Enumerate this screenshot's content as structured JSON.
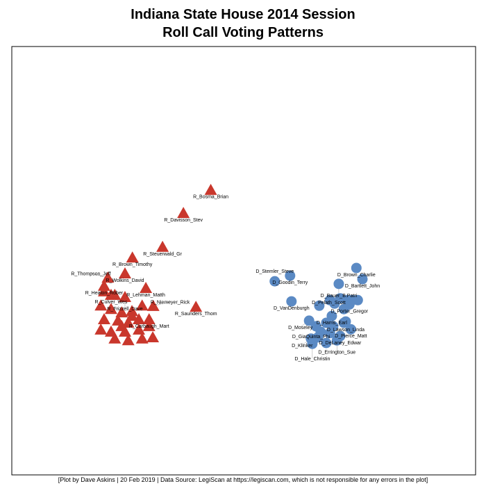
{
  "chart_data": {
    "type": "scatter",
    "title": "Indiana State House 2014 Session",
    "subtitle": "Roll Call Voting Patterns",
    "xlabel": "",
    "ylabel": "",
    "xlim": [
      0,
      100
    ],
    "ylim": [
      0,
      100
    ],
    "grid": false,
    "axes_shown": false,
    "series": [
      {
        "party": "R",
        "marker": "triangle",
        "color": "#c9372c",
        "points": [
          {
            "label": "R_Bosma_Brian",
            "x": 42.9,
            "y": 66.5
          },
          {
            "label": "R_Davisson_Stev",
            "x": 37.0,
            "y": 61.1
          },
          {
            "label": "R_Steuerwald_Gr",
            "x": 32.5,
            "y": 53.2
          },
          {
            "label": "R_Brown_Timothy",
            "x": 26.0,
            "y": 50.7
          },
          {
            "label": "R_Wolkins_David",
            "x": 24.4,
            "y": 47.0
          },
          {
            "label": "R_Thompson_Jeff",
            "x": 20.7,
            "y": 46.0
          },
          {
            "label": "R_Heaton_Rober",
            "x": 19.9,
            "y": 44.1
          },
          {
            "label": "R_Lehman_Matth",
            "x": 28.9,
            "y": 43.6
          },
          {
            "label": "R_Culver_Wes",
            "x": 21.4,
            "y": 42.0
          },
          {
            "label": "R_Frizzell_Dave",
            "x": 24.4,
            "y": 41.5
          },
          {
            "label": "R_Niemeyer_Rick",
            "x": 30.5,
            "y": 39.4
          },
          {
            "label": "R_Saunders_Thom",
            "x": 39.7,
            "y": 39.2
          },
          {
            "label": "R_Carbaugh_Mart",
            "x": 29.6,
            "y": 36.3
          },
          {
            "label": "",
            "x": 19.9,
            "y": 42.8
          },
          {
            "label": "",
            "x": 22.2,
            "y": 42.0
          },
          {
            "label": "",
            "x": 19.2,
            "y": 39.5
          },
          {
            "label": "",
            "x": 21.4,
            "y": 38.7
          },
          {
            "label": "",
            "x": 23.7,
            "y": 37.9
          },
          {
            "label": "",
            "x": 25.9,
            "y": 38.2
          },
          {
            "label": "",
            "x": 19.9,
            "y": 36.3
          },
          {
            "label": "",
            "x": 22.9,
            "y": 36.0
          },
          {
            "label": "",
            "x": 25.1,
            "y": 35.5
          },
          {
            "label": "",
            "x": 27.4,
            "y": 36.3
          },
          {
            "label": "",
            "x": 19.2,
            "y": 33.9
          },
          {
            "label": "",
            "x": 21.4,
            "y": 33.4
          },
          {
            "label": "",
            "x": 24.4,
            "y": 33.4
          },
          {
            "label": "",
            "x": 27.4,
            "y": 33.9
          },
          {
            "label": "",
            "x": 29.6,
            "y": 34.7
          },
          {
            "label": "",
            "x": 22.2,
            "y": 31.8
          },
          {
            "label": "",
            "x": 25.1,
            "y": 31.4
          },
          {
            "label": "",
            "x": 28.1,
            "y": 31.8
          },
          {
            "label": "",
            "x": 30.4,
            "y": 32.1
          },
          {
            "label": "",
            "x": 25.9,
            "y": 37.1
          },
          {
            "label": "",
            "x": 28.1,
            "y": 39.5
          },
          {
            "label": "",
            "x": 23.7,
            "y": 34.7
          }
        ]
      },
      {
        "party": "D",
        "marker": "circle",
        "color": "#5b8ac4",
        "points": [
          {
            "label": "D_Brown_Charlie",
            "x": 74.3,
            "y": 48.3
          },
          {
            "label": "D_Bartlett_John",
            "x": 75.6,
            "y": 45.7
          },
          {
            "label": "D_Goodin_Terry",
            "x": 60.0,
            "y": 46.5
          },
          {
            "label": "D_Stemler_Steve",
            "x": 56.7,
            "y": 45.2
          },
          {
            "label": "D_Bauer_B.Patri",
            "x": 70.5,
            "y": 44.6
          },
          {
            "label": "D_VanDenburgh",
            "x": 60.3,
            "y": 40.5
          },
          {
            "label": "D_Porter_Gregor",
            "x": 72.8,
            "y": 39.8
          },
          {
            "label": "D_Pelath_Scott",
            "x": 71.6,
            "y": 38.7
          },
          {
            "label": "D_Harris_Earl",
            "x": 69.0,
            "y": 37.1
          },
          {
            "label": "D_Moseley",
            "x": 64.1,
            "y": 36.0
          },
          {
            "label": "D_Lawson_Linda",
            "x": 72.0,
            "y": 35.8
          },
          {
            "label": "D_Pierce_Matt",
            "x": 73.1,
            "y": 34.0
          },
          {
            "label": "D_DeLaney_Edwar",
            "x": 70.8,
            "y": 32.4
          },
          {
            "label": "D_Errington_Sue",
            "x": 70.1,
            "y": 31.4
          },
          {
            "label": "D_Klinker",
            "x": 64.5,
            "y": 31.8
          },
          {
            "label": "D_GiaQuinta_Phi",
            "x": 67.8,
            "y": 30.8
          },
          {
            "label": "D_Hale_Christin",
            "x": 64.8,
            "y": 30.6
          },
          {
            "label": "",
            "x": 68.6,
            "y": 40.8
          },
          {
            "label": "",
            "x": 70.8,
            "y": 41.2
          },
          {
            "label": "",
            "x": 72.3,
            "y": 40.8
          },
          {
            "label": "",
            "x": 73.4,
            "y": 40.8
          },
          {
            "label": "",
            "x": 74.6,
            "y": 40.8
          },
          {
            "label": "",
            "x": 69.6,
            "y": 40.0
          },
          {
            "label": "",
            "x": 66.3,
            "y": 39.5
          },
          {
            "label": "",
            "x": 67.8,
            "y": 35.5
          },
          {
            "label": "",
            "x": 69.3,
            "y": 34.7
          },
          {
            "label": "",
            "x": 65.6,
            "y": 34.7
          },
          {
            "label": "",
            "x": 66.6,
            "y": 33.4
          },
          {
            "label": "",
            "x": 68.6,
            "y": 33.1
          },
          {
            "label": "",
            "x": 71.6,
            "y": 35.5
          },
          {
            "label": "",
            "x": 66.0,
            "y": 32.1
          }
        ]
      }
    ]
  },
  "footer": "[Plot by Dave Askins | 20 Feb 2019 | Data Source: LegiScan at https://legiscan.com, which is not responsible for any errors in the plot]"
}
